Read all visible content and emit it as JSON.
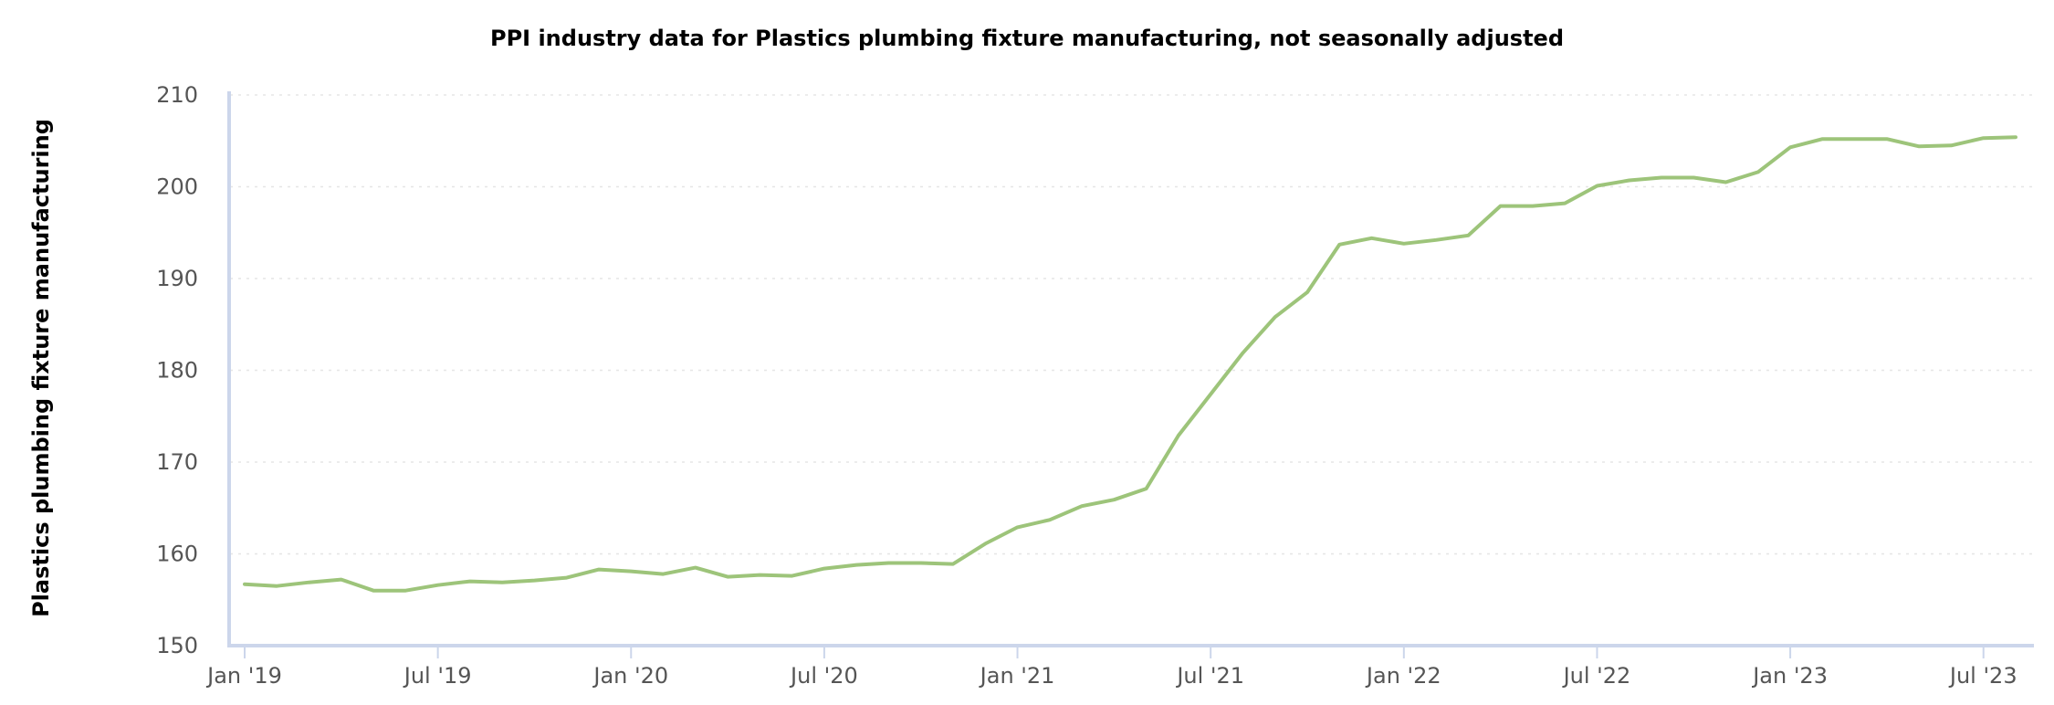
{
  "chart_data": {
    "type": "line",
    "title": "PPI industry data for Plastics plumbing fixture manufacturing, not seasonally adjusted",
    "xlabel": "",
    "ylabel": "Plastics plumbing fixture manufacturing",
    "ylim": [
      150,
      210
    ],
    "yticks": [
      150,
      160,
      170,
      180,
      190,
      200,
      210
    ],
    "xticks": [
      "Jan '19",
      "Jul '19",
      "Jan '20",
      "Jul '20",
      "Jan '21",
      "Jul '21",
      "Jan '22",
      "Jul '22",
      "Jan '23",
      "Jul '23"
    ],
    "grid": true,
    "legend": "none",
    "series": [
      {
        "name": "Plastics plumbing fixture manufacturing",
        "color": "#9dc47a",
        "x": [
          "Jan 2019",
          "Feb 2019",
          "Mar 2019",
          "Apr 2019",
          "May 2019",
          "Jun 2019",
          "Jul 2019",
          "Aug 2019",
          "Sep 2019",
          "Oct 2019",
          "Nov 2019",
          "Dec 2019",
          "Jan 2020",
          "Feb 2020",
          "Mar 2020",
          "Apr 2020",
          "May 2020",
          "Jun 2020",
          "Jul 2020",
          "Aug 2020",
          "Sep 2020",
          "Oct 2020",
          "Nov 2020",
          "Dec 2020",
          "Jan 2021",
          "Feb 2021",
          "Mar 2021",
          "Apr 2021",
          "May 2021",
          "Jun 2021",
          "Jul 2021",
          "Aug 2021",
          "Sep 2021",
          "Oct 2021",
          "Nov 2021",
          "Dec 2021",
          "Jan 2022",
          "Feb 2022",
          "Mar 2022",
          "Apr 2022",
          "May 2022",
          "Jun 2022",
          "Jul 2022",
          "Aug 2022",
          "Sep 2022",
          "Oct 2022",
          "Nov 2022",
          "Dec 2022",
          "Jan 2023",
          "Feb 2023",
          "Mar 2023",
          "Apr 2023",
          "May 2023",
          "Jun 2023",
          "Jul 2023",
          "Aug 2023"
        ],
        "values": [
          156.7,
          156.5,
          156.9,
          157.2,
          156.0,
          156.0,
          156.6,
          157.0,
          156.9,
          157.1,
          157.4,
          158.3,
          158.1,
          157.8,
          158.5,
          157.5,
          157.7,
          157.6,
          158.4,
          158.8,
          159.0,
          159.0,
          158.9,
          161.1,
          162.9,
          163.7,
          165.2,
          165.9,
          167.1,
          172.9,
          177.4,
          181.9,
          185.8,
          188.5,
          193.7,
          194.4,
          193.8,
          194.2,
          194.7,
          197.9,
          197.9,
          198.2,
          200.1,
          200.7,
          201.0,
          201.0,
          200.5,
          201.6,
          204.3,
          205.2,
          205.2,
          205.2,
          204.4,
          204.5,
          205.3,
          205.4
        ]
      }
    ]
  }
}
